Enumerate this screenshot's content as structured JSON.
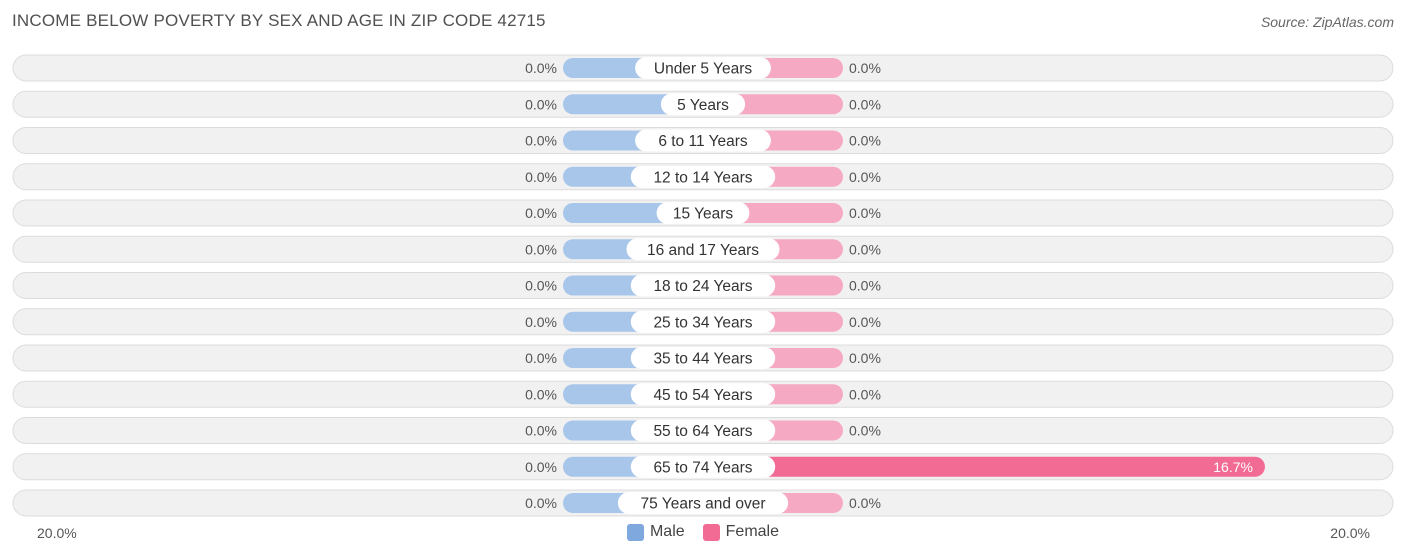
{
  "header": {
    "title": "INCOME BELOW POVERTY BY SEX AND AGE IN ZIP CODE 42715",
    "source": "Source: ZipAtlas.com"
  },
  "colors": {
    "male": "#a8c6ea",
    "female_light": "#f6a9c3",
    "female_strong": "#f26b95",
    "row_bg": "#f1f1f1",
    "row_border": "#dcdcdc"
  },
  "chart_data": {
    "type": "bar",
    "orientation": "horizontal-diverging",
    "categories": [
      "Under 5 Years",
      "5 Years",
      "6 to 11 Years",
      "12 to 14 Years",
      "15 Years",
      "16 and 17 Years",
      "18 to 24 Years",
      "25 to 34 Years",
      "35 to 44 Years",
      "45 to 54 Years",
      "55 to 64 Years",
      "65 to 74 Years",
      "75 Years and over"
    ],
    "series": [
      {
        "name": "Male",
        "values": [
          0,
          0,
          0,
          0,
          0,
          0,
          0,
          0,
          0,
          0,
          0,
          0,
          0
        ],
        "labels": [
          "0.0%",
          "0.0%",
          "0.0%",
          "0.0%",
          "0.0%",
          "0.0%",
          "0.0%",
          "0.0%",
          "0.0%",
          "0.0%",
          "0.0%",
          "0.0%",
          "0.0%"
        ]
      },
      {
        "name": "Female",
        "values": [
          0,
          0,
          0,
          0,
          0,
          0,
          0,
          0,
          0,
          0,
          0,
          16.7,
          0
        ],
        "labels": [
          "0.0%",
          "0.0%",
          "0.0%",
          "0.0%",
          "0.0%",
          "0.0%",
          "0.0%",
          "0.0%",
          "0.0%",
          "0.0%",
          "0.0%",
          "16.7%",
          "0.0%"
        ]
      }
    ],
    "xlim": [
      -20,
      20
    ],
    "axis_left_label": "20.0%",
    "axis_right_label": "20.0%",
    "legend_position": "bottom-center"
  }
}
